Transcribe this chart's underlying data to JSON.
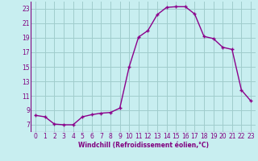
{
  "x": [
    0,
    1,
    2,
    3,
    4,
    5,
    6,
    7,
    8,
    9,
    10,
    11,
    12,
    13,
    14,
    15,
    16,
    17,
    18,
    19,
    20,
    21,
    22,
    23
  ],
  "y": [
    8.3,
    8.1,
    7.1,
    7.0,
    7.0,
    8.1,
    8.4,
    8.6,
    8.7,
    9.3,
    15.0,
    19.1,
    20.0,
    22.2,
    23.2,
    23.3,
    23.3,
    22.3,
    19.2,
    18.9,
    17.7,
    17.4,
    11.8,
    10.3
  ],
  "line_color": "#8B008B",
  "marker": "+",
  "marker_size": 3.5,
  "marker_lw": 1.0,
  "bg_color": "#C8EEF0",
  "grid_color": "#A0CCCC",
  "xlabel": "Windchill (Refroidissement éolien,°C)",
  "xlabel_color": "#800080",
  "tick_color": "#800080",
  "ylim": [
    6,
    24
  ],
  "xlim": [
    -0.5,
    23.5
  ],
  "yticks": [
    7,
    9,
    11,
    13,
    15,
    17,
    19,
    21,
    23
  ],
  "xticks": [
    0,
    1,
    2,
    3,
    4,
    5,
    6,
    7,
    8,
    9,
    10,
    11,
    12,
    13,
    14,
    15,
    16,
    17,
    18,
    19,
    20,
    21,
    22,
    23
  ],
  "tick_fontsize": 5.5,
  "xlabel_fontsize": 5.5,
  "linewidth": 1.0
}
